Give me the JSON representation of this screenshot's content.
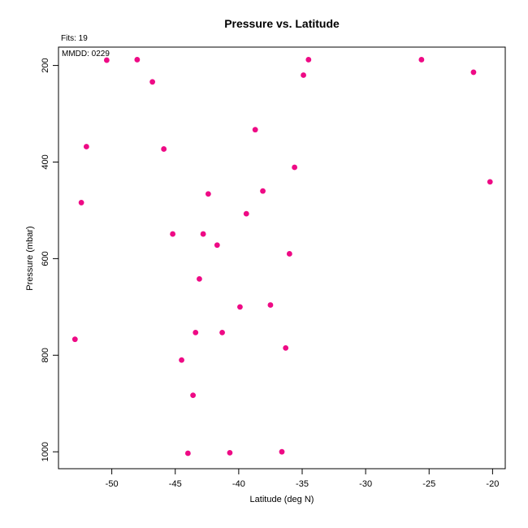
{
  "chart_data": {
    "type": "scatter",
    "title": "Pressure vs. Latitude",
    "xlabel": "Latitude (deg N)",
    "ylabel": "Pressure (mbar)",
    "annotations": {
      "fits": "Fits: 19",
      "mmdd": "MMDD: 0229"
    },
    "xlim": [
      -54.2,
      -19.0
    ],
    "ylim": [
      1035,
      162
    ],
    "y_reversed": true,
    "grid": false,
    "xticks": [
      -50,
      -45,
      -40,
      -35,
      -30,
      -25,
      -20
    ],
    "xtick_labels": [
      "-50",
      "-45",
      "-40",
      "-35",
      "-30",
      "-25",
      "-20"
    ],
    "yticks": [
      200,
      400,
      600,
      800,
      1000
    ],
    "ytick_labels": [
      "200",
      "400",
      "600",
      "800",
      "1000"
    ],
    "point_color": "#ee0a85",
    "points": [
      {
        "x": -50.4,
        "y": 189
      },
      {
        "x": -48.0,
        "y": 188
      },
      {
        "x": -46.8,
        "y": 234
      },
      {
        "x": -34.5,
        "y": 188
      },
      {
        "x": -34.9,
        "y": 220
      },
      {
        "x": -25.6,
        "y": 188
      },
      {
        "x": -21.5,
        "y": 214
      },
      {
        "x": -38.7,
        "y": 333
      },
      {
        "x": -52.0,
        "y": 368
      },
      {
        "x": -45.9,
        "y": 373
      },
      {
        "x": -35.6,
        "y": 411
      },
      {
        "x": -20.2,
        "y": 441
      },
      {
        "x": -38.1,
        "y": 460
      },
      {
        "x": -42.4,
        "y": 466
      },
      {
        "x": -52.4,
        "y": 484
      },
      {
        "x": -39.4,
        "y": 507
      },
      {
        "x": -45.2,
        "y": 549
      },
      {
        "x": -42.8,
        "y": 549
      },
      {
        "x": -41.7,
        "y": 572
      },
      {
        "x": -36.0,
        "y": 590
      },
      {
        "x": -43.1,
        "y": 642
      },
      {
        "x": -37.5,
        "y": 696
      },
      {
        "x": -39.9,
        "y": 700
      },
      {
        "x": -43.4,
        "y": 753
      },
      {
        "x": -41.3,
        "y": 753
      },
      {
        "x": -52.9,
        "y": 767
      },
      {
        "x": -36.3,
        "y": 785
      },
      {
        "x": -44.5,
        "y": 810
      },
      {
        "x": -43.6,
        "y": 883
      },
      {
        "x": -44.0,
        "y": 1003
      },
      {
        "x": -40.7,
        "y": 1002
      },
      {
        "x": -36.6,
        "y": 1000
      }
    ]
  }
}
